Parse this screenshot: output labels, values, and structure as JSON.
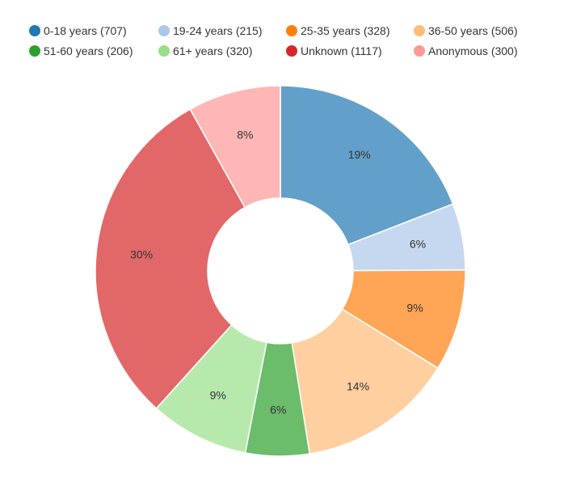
{
  "chart_data": {
    "type": "pie",
    "variant": "donut",
    "title": "",
    "legend": {
      "placement": "top",
      "entries": [
        {
          "label": "0-18 years (707)",
          "color": "#1f77b4"
        },
        {
          "label": "19-24 years (215)",
          "color": "#aec7e8"
        },
        {
          "label": "25-35 years (328)",
          "color": "#ff7f0e"
        },
        {
          "label": "36-50 years (506)",
          "color": "#ffbb78"
        },
        {
          "label": "51-60 years (206)",
          "color": "#2ca02c"
        },
        {
          "label": "61+ years (320)",
          "color": "#98df8a"
        },
        {
          "label": "Unknown (1117)",
          "color": "#d62728"
        },
        {
          "label": "Anonymous (300)",
          "color": "#ff9896"
        }
      ]
    },
    "slices": [
      {
        "name": "0-18 years",
        "value": 707,
        "label": "19%",
        "color": "#1f77b4"
      },
      {
        "name": "19-24 years",
        "value": 215,
        "label": "6%",
        "color": "#aec7e8"
      },
      {
        "name": "25-35 years",
        "value": 328,
        "label": "9%",
        "color": "#ff7f0e"
      },
      {
        "name": "36-50 years",
        "value": 506,
        "label": "14%",
        "color": "#ffbb78"
      },
      {
        "name": "51-60 years",
        "value": 206,
        "label": "6%",
        "color": "#2ca02c"
      },
      {
        "name": "61+ years",
        "value": 320,
        "label": "9%",
        "color": "#98df8a"
      },
      {
        "name": "Unknown",
        "value": 1117,
        "label": "30%",
        "color": "#d62728"
      },
      {
        "name": "Anonymous",
        "value": 300,
        "label": "8%",
        "color": "#ff9896"
      }
    ],
    "slice_opacity": 0.7
  }
}
